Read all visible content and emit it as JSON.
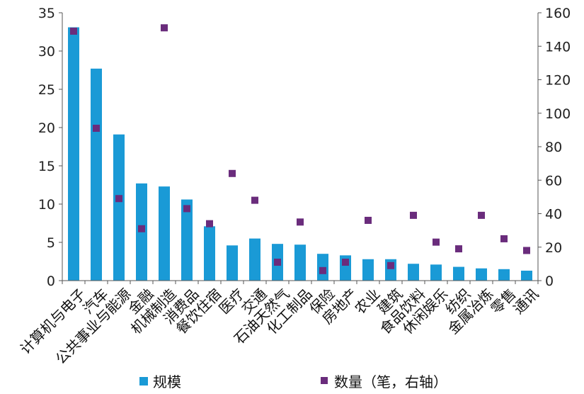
{
  "chart_data": {
    "type": "bar",
    "categories": [
      "计算机与电子",
      "汽车",
      "公共事业与能源",
      "金融",
      "机械制造",
      "消费品",
      "餐饮住宿",
      "医疗",
      "交通",
      "石油天然气",
      "化工制品",
      "保险",
      "房地产",
      "农业",
      "建筑",
      "食品饮料",
      "休闲娱乐",
      "纺织",
      "金属冶炼",
      "零售",
      "通讯"
    ],
    "series": [
      {
        "name": "规模",
        "type": "bar",
        "axis": "left",
        "color": "#1a9ad6",
        "values": [
          33.1,
          27.7,
          19.1,
          12.7,
          12.3,
          10.6,
          7.1,
          4.6,
          5.5,
          4.8,
          4.7,
          3.5,
          3.3,
          2.8,
          2.8,
          2.2,
          2.1,
          1.8,
          1.6,
          1.5,
          1.3
        ]
      },
      {
        "name": "数量（笔，右轴）",
        "type": "scatter",
        "axis": "right",
        "color": "#6a2c7c",
        "values": [
          149,
          91,
          49,
          31,
          151,
          43,
          34,
          64,
          48,
          11,
          35,
          6,
          11,
          36,
          9,
          39,
          23,
          19,
          39,
          25,
          18
        ]
      }
    ],
    "y_left": {
      "min": 0,
      "max": 35,
      "ticks": [
        "0",
        "5",
        "10",
        "15",
        "20",
        "25",
        "30",
        "35"
      ]
    },
    "y_right": {
      "min": 0,
      "max": 160,
      "ticks": [
        "0",
        "20",
        "40",
        "60",
        "80",
        "100",
        "120",
        "140",
        "160"
      ]
    },
    "legend_position": "bottom",
    "grid": false
  }
}
